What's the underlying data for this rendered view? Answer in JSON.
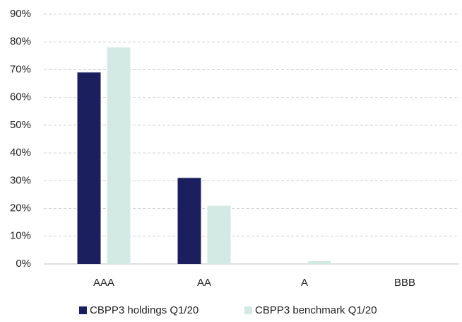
{
  "chart_data": {
    "type": "bar",
    "categories": [
      "AAA",
      "AA",
      "A",
      "BBB"
    ],
    "series": [
      {
        "name": "CBPP3 holdings Q1/20",
        "color": "#1b1f5e",
        "values": [
          69,
          31,
          0,
          0
        ]
      },
      {
        "name": "CBPP3 benchmark Q1/20",
        "color": "#d3e9e4",
        "values": [
          78,
          21,
          1,
          0
        ]
      }
    ],
    "ylim": [
      0,
      90
    ],
    "yticks": [
      {
        "value": 0,
        "label": "0%"
      },
      {
        "value": 10,
        "label": "10%"
      },
      {
        "value": 20,
        "label": "20%"
      },
      {
        "value": 30,
        "label": "30%"
      },
      {
        "value": 40,
        "label": "40%"
      },
      {
        "value": 50,
        "label": "50%"
      },
      {
        "value": 60,
        "label": "60%"
      },
      {
        "value": 70,
        "label": "70%"
      },
      {
        "value": 80,
        "label": "80%"
      },
      {
        "value": 90,
        "label": "90%"
      }
    ],
    "grid": true,
    "legend": "bottom"
  }
}
